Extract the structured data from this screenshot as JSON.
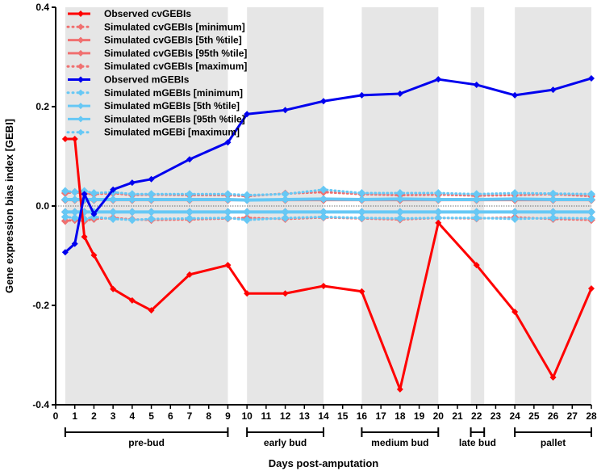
{
  "chart_data": {
    "type": "line",
    "xlabel": "Days post-amputation",
    "ylabel": "Gene expression bias index [GEBI]",
    "xlim": [
      0,
      28
    ],
    "ylim": [
      -0.4,
      0.4
    ],
    "xticks": [
      0,
      1,
      2,
      3,
      4,
      5,
      6,
      7,
      8,
      9,
      10,
      11,
      12,
      13,
      14,
      15,
      16,
      17,
      18,
      19,
      20,
      21,
      22,
      23,
      24,
      25,
      26,
      27,
      28
    ],
    "yticks": [
      {
        "v": 0.4,
        "label": "0.4"
      },
      {
        "v": 0.2,
        "label": "0.2"
      },
      {
        "v": 0,
        "label": "0.0"
      },
      {
        "v": -0.2,
        "label": "-0.2"
      },
      {
        "v": -0.4,
        "label": "-0.4"
      }
    ],
    "x": [
      0.5,
      1,
      1.5,
      2,
      3,
      4,
      5,
      7,
      9,
      10,
      12,
      14,
      16,
      18,
      20,
      22,
      24,
      26,
      28
    ],
    "stages": [
      {
        "label": "pre-bud",
        "from": 0.5,
        "to": 9
      },
      {
        "label": "early bud",
        "from": 10,
        "to": 14
      },
      {
        "label": "medium bud",
        "from": 16,
        "to": 20
      },
      {
        "label": "late bud",
        "from": 21.7,
        "to": 22.4
      },
      {
        "label": "pallet",
        "from": 24,
        "to": 28
      }
    ],
    "series": [
      {
        "name": "Observed cvGEBIs",
        "color": "#ff0000",
        "style": "solid",
        "width": 3,
        "values": [
          0.135,
          0.135,
          -0.062,
          -0.099,
          -0.167,
          -0.19,
          -0.21,
          -0.138,
          -0.119,
          -0.176,
          -0.176,
          -0.161,
          -0.172,
          -0.369,
          -0.034,
          -0.119,
          -0.213,
          -0.345,
          -0.166
        ]
      },
      {
        "name": "Simulated cvGEBIs [minimum]",
        "color": "#f07070",
        "style": "dotted",
        "width": 3,
        "values": [
          -0.03,
          -0.028,
          -0.03,
          -0.026,
          -0.024,
          -0.027,
          -0.028,
          -0.027,
          -0.025,
          -0.024,
          -0.026,
          -0.023,
          -0.025,
          -0.027,
          -0.024,
          -0.025,
          -0.023,
          -0.026,
          -0.028
        ]
      },
      {
        "name": "Simulated cvGEBIs [5th %tile]",
        "color": "#f07070",
        "style": "solid",
        "width": 3,
        "values": [
          -0.012,
          -0.012,
          -0.012,
          -0.012,
          -0.012,
          -0.012,
          -0.012,
          -0.012,
          -0.012,
          -0.012,
          -0.012,
          -0.012,
          -0.012,
          -0.012,
          -0.012,
          -0.012,
          -0.012,
          -0.012,
          -0.012
        ]
      },
      {
        "name": "Simulated cvGEBIs [95th %tile]",
        "color": "#f07070",
        "style": "solid",
        "width": 3,
        "values": [
          0.012,
          0.012,
          0.012,
          0.012,
          0.012,
          0.012,
          0.012,
          0.012,
          0.012,
          0.012,
          0.012,
          0.012,
          0.012,
          0.012,
          0.012,
          0.012,
          0.012,
          0.012,
          0.012
        ]
      },
      {
        "name": "Simulated cvGEBIs [maximum]",
        "color": "#f07070",
        "style": "dotted",
        "width": 3,
        "values": [
          0.026,
          0.028,
          0.025,
          0.024,
          0.026,
          0.022,
          0.023,
          0.022,
          0.022,
          0.02,
          0.025,
          0.028,
          0.024,
          0.022,
          0.023,
          0.021,
          0.022,
          0.024,
          0.02
        ]
      },
      {
        "name": "Observed mGEBIs",
        "color": "#0000ee",
        "style": "solid",
        "width": 3,
        "values": [
          -0.093,
          -0.076,
          0.024,
          -0.016,
          0.033,
          0.047,
          0.054,
          0.094,
          0.128,
          0.185,
          0.193,
          0.211,
          0.223,
          0.226,
          0.255,
          0.244,
          0.223,
          0.234,
          0.257
        ]
      },
      {
        "name": "Simulated mGEBIs [minimum]",
        "color": "#66c8f5",
        "style": "dotted",
        "width": 3,
        "values": [
          -0.022,
          -0.024,
          -0.026,
          -0.022,
          -0.026,
          -0.028,
          -0.026,
          -0.025,
          -0.024,
          -0.028,
          -0.024,
          -0.022,
          -0.024,
          -0.025,
          -0.024,
          -0.024,
          -0.026,
          -0.024,
          -0.025
        ]
      },
      {
        "name": "Simulated mGEBIs [5th %tile]",
        "color": "#66c8f5",
        "style": "solid",
        "width": 4,
        "values": [
          -0.012,
          -0.012,
          -0.012,
          -0.012,
          -0.012,
          -0.012,
          -0.012,
          -0.012,
          -0.012,
          -0.012,
          -0.012,
          -0.012,
          -0.012,
          -0.012,
          -0.012,
          -0.012,
          -0.012,
          -0.012,
          -0.012
        ]
      },
      {
        "name": "Simulated mGEBIs [95th %tile]",
        "color": "#66c8f5",
        "style": "solid",
        "width": 4,
        "values": [
          0.013,
          0.013,
          0.013,
          0.013,
          0.013,
          0.013,
          0.013,
          0.013,
          0.013,
          0.012,
          0.013,
          0.014,
          0.013,
          0.014,
          0.013,
          0.013,
          0.014,
          0.013,
          0.013
        ]
      },
      {
        "name": "Simulated mGEBi [maximum]",
        "color": "#66c8f5",
        "style": "dotted",
        "width": 3,
        "values": [
          0.03,
          0.028,
          0.03,
          0.026,
          0.028,
          0.024,
          0.024,
          0.024,
          0.024,
          0.022,
          0.024,
          0.033,
          0.026,
          0.026,
          0.026,
          0.024,
          0.026,
          0.025,
          0.024
        ]
      }
    ],
    "legend": "top-left"
  }
}
